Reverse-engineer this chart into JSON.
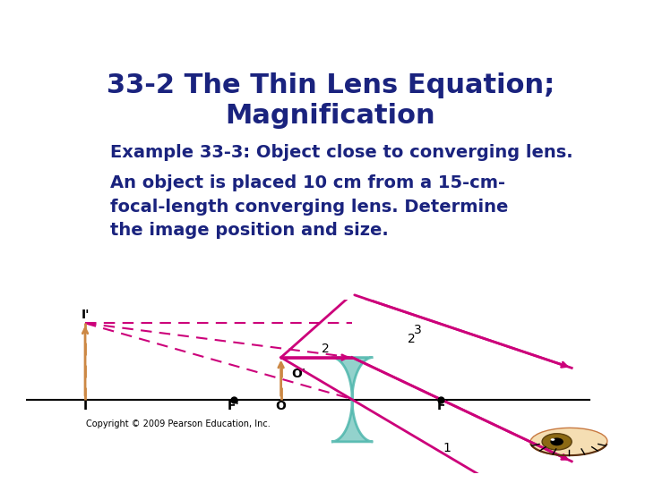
{
  "title_line1": "33-2 The Thin Lens Equation;",
  "title_line2": "Magnification",
  "title_color": "#1a237e",
  "title_fontsize": 22,
  "subtitle": "Example 33-3: Object close to converging lens.",
  "subtitle_color": "#1a237e",
  "subtitle_fontsize": 14,
  "body_text": "An object is placed 10 cm from a 15-cm-\nfocal-length converging lens. Determine\nthe image position and size.",
  "body_color": "#1a237e",
  "body_fontsize": 14,
  "copyright": "Copyright © 2009 Pearson Education, Inc.",
  "copyright_fontsize": 7,
  "bg_color": "#ffffff",
  "ray_color": "#cc007a",
  "dashed_color": "#cc007a",
  "object_arrow_color": "#cc8844",
  "lens_color": "#80cbc4",
  "lens_edge_color": "#4db6ac",
  "axis_color": "#000000"
}
